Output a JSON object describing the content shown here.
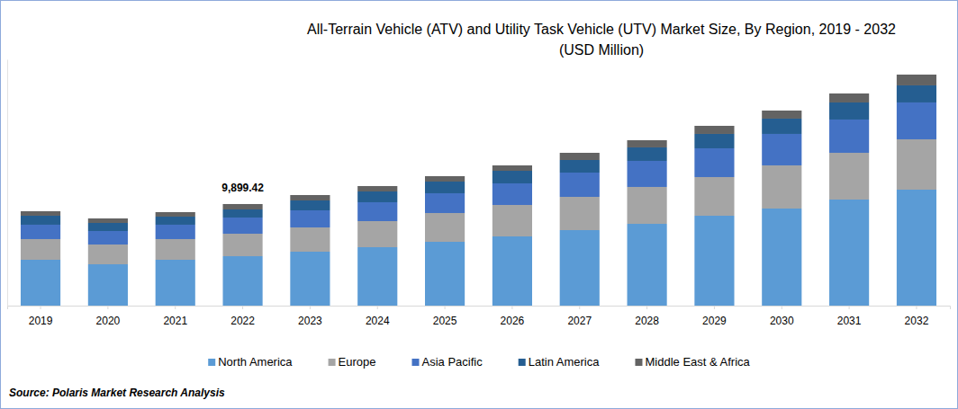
{
  "chart_data": {
    "type": "bar",
    "stacked": true,
    "title": "All-Terrain Vehicle (ATV) and Utility Task Vehicle (UTV) Market Size, By Region, 2019 - 2032",
    "subtitle": "(USD Million)",
    "source": "Source: Polaris Market Research Analysis",
    "categories": [
      "2019",
      "2020",
      "2021",
      "2022",
      "2023",
      "2024",
      "2025",
      "2026",
      "2027",
      "2028",
      "2029",
      "2030",
      "2031",
      "2032"
    ],
    "series": [
      {
        "name": "North America",
        "color": "#5b9bd5",
        "values": [
          4468,
          4030,
          4468,
          4818,
          5256,
          5694,
          6220,
          6745,
          7358,
          7972,
          8760,
          9461,
          10337,
          11300
        ]
      },
      {
        "name": "Europe",
        "color": "#a5a5a5",
        "values": [
          2015,
          1927,
          2015,
          2190,
          2365,
          2540,
          2803,
          3066,
          3241,
          3592,
          3767,
          4205,
          4555,
          4906
        ]
      },
      {
        "name": "Asia Pacific",
        "color": "#4472c4",
        "values": [
          1402,
          1314,
          1402,
          1577,
          1664,
          1840,
          1927,
          2102,
          2365,
          2540,
          2803,
          3066,
          3241,
          3592
        ]
      },
      {
        "name": "Latin America",
        "color": "#255e91",
        "values": [
          876,
          788,
          788,
          788,
          964,
          1051,
          1139,
          1226,
          1226,
          1314,
          1402,
          1489,
          1664,
          1664
        ]
      },
      {
        "name": "Middle East & Africa",
        "color": "#636363",
        "values": [
          438,
          438,
          438,
          526.42,
          526,
          526,
          526,
          526,
          701,
          701,
          788,
          788,
          876,
          1051
        ]
      }
    ],
    "annotations": [
      {
        "text": "9,899.42",
        "x": "2022"
      }
    ],
    "ylim": [
      0,
      24000
    ],
    "yticks": [
      0
    ],
    "tick_labels": "x",
    "grid": false,
    "legend": "bottom"
  }
}
